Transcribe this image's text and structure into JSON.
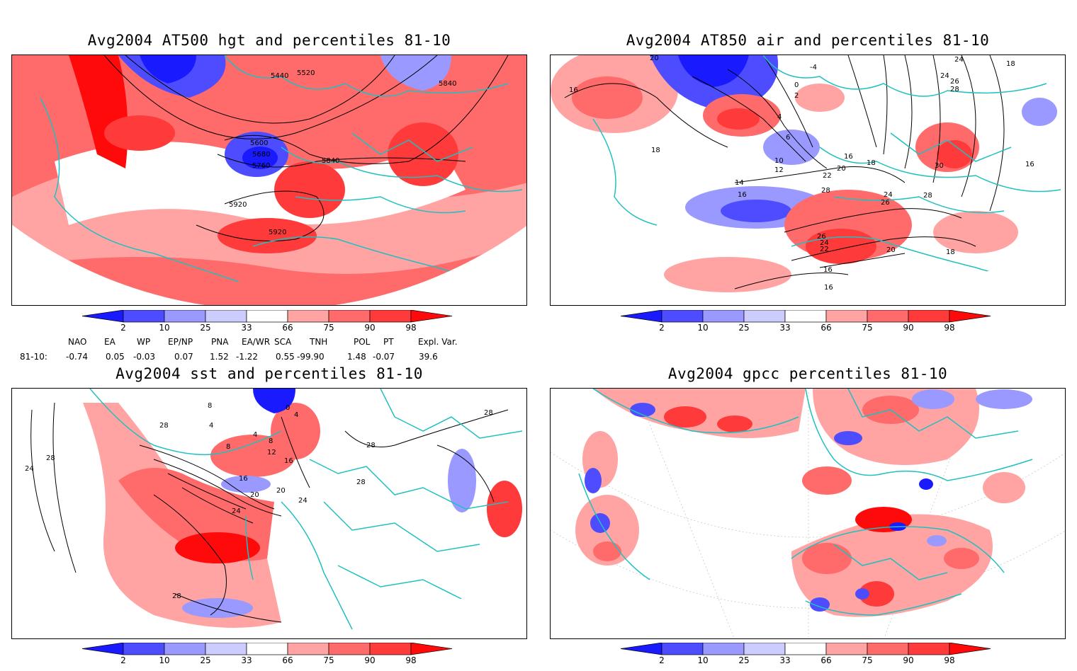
{
  "colors": {
    "dark_blue": "#1a1aff",
    "mid_blue": "#4d4dff",
    "light_blue": "#9999ff",
    "light_red": "#ffa3a3",
    "mid_red": "#ff6a6a",
    "dark_red": "#ff3a3a",
    "deep_red": "#ff0a0a",
    "map_lines": "#20c0c0",
    "contour": "#000000"
  },
  "colorbar": {
    "ticks": [
      "2",
      "10",
      "25",
      "33",
      "66",
      "75",
      "90",
      "98"
    ]
  },
  "panels": [
    {
      "title": "Avg2004 AT500 hgt and percentiles 81-10",
      "contour_labels": [
        "5440",
        "5520",
        "5840",
        "5600",
        "5680",
        "5760",
        "5840",
        "5920",
        "5920"
      ]
    },
    {
      "title": "Avg2004 AT850 air and percentiles 81-10",
      "contour_labels": [
        "20",
        "-4",
        "24",
        "18",
        "24",
        "16",
        "0",
        "2",
        "26",
        "28",
        "4",
        "6",
        "18",
        "10",
        "12",
        "16",
        "18",
        "20",
        "22",
        "30",
        "16",
        "14",
        "28",
        "24",
        "26",
        "16",
        "28",
        "26",
        "24",
        "22",
        "20",
        "18",
        "16",
        "16"
      ]
    },
    {
      "title": "Avg2004 sst and percentiles 81-10",
      "contour_labels": [
        "24",
        "28",
        "28",
        "4",
        "8",
        "0",
        "4",
        "4",
        "8",
        "8",
        "12",
        "16",
        "16",
        "20",
        "20",
        "24",
        "24",
        "28",
        "28",
        "28",
        "28"
      ]
    },
    {
      "title": "Avg2004 gpcc percentiles 81-10",
      "contour_labels": []
    }
  ],
  "indices": {
    "headers": [
      "NAO",
      "EA",
      "WP",
      "EP/NP",
      "PNA",
      "EA/WR",
      "SCA",
      "TNH",
      "POL",
      "PT",
      "Expl. Var."
    ],
    "row_label": "81-10:",
    "values": [
      "-0.74",
      "0.05",
      "-0.03",
      "0.07",
      "1.52",
      "-1.22",
      "0.55",
      "-99.90",
      "1.48",
      "-0.07",
      "39.6"
    ]
  }
}
